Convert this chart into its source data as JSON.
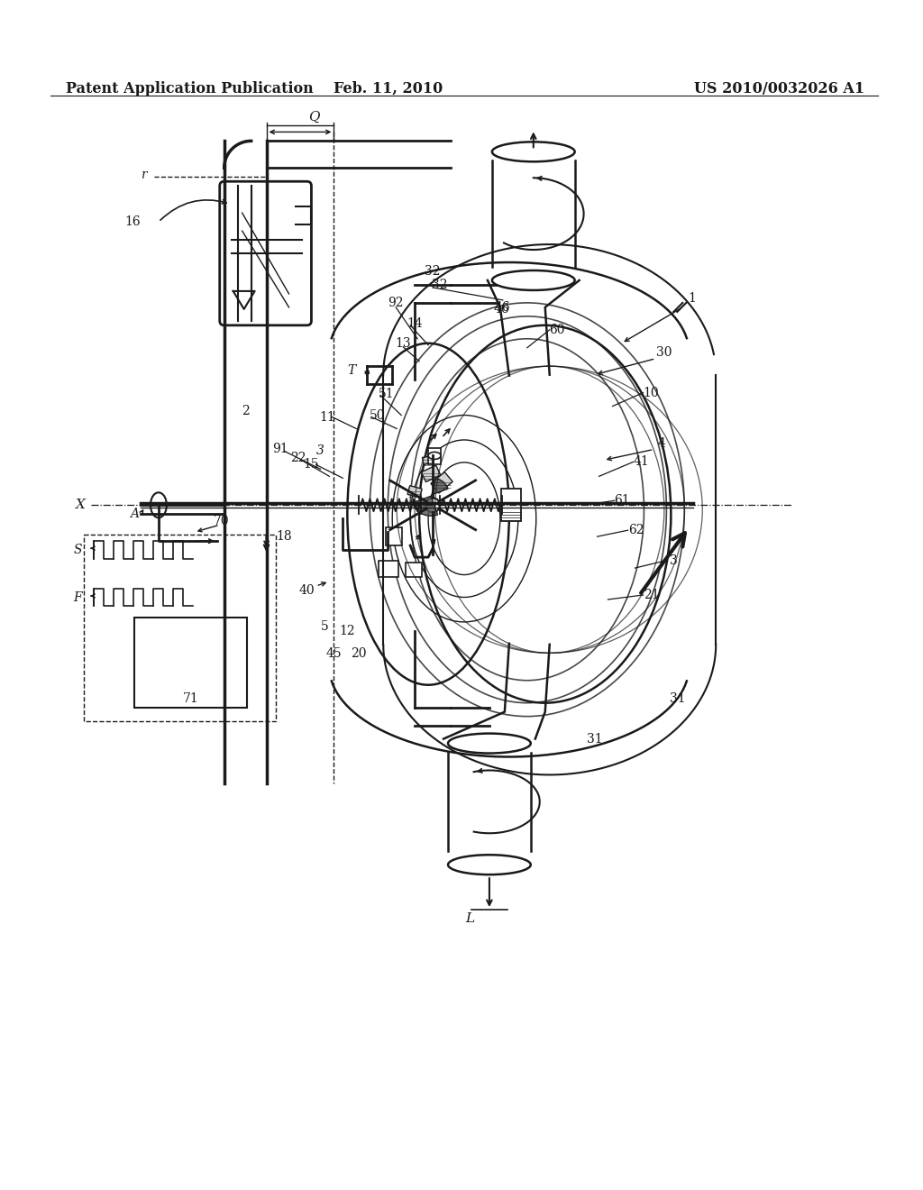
{
  "bg_color": "#ffffff",
  "line_color": "#1a1a1a",
  "header_left": "Patent Application Publication",
  "header_center": "Feb. 11, 2010",
  "header_right": "US 2010/0032026 A1",
  "header_fontsize": 11.5,
  "figure_width": 10.24,
  "figure_height": 13.2,
  "dpi": 100
}
